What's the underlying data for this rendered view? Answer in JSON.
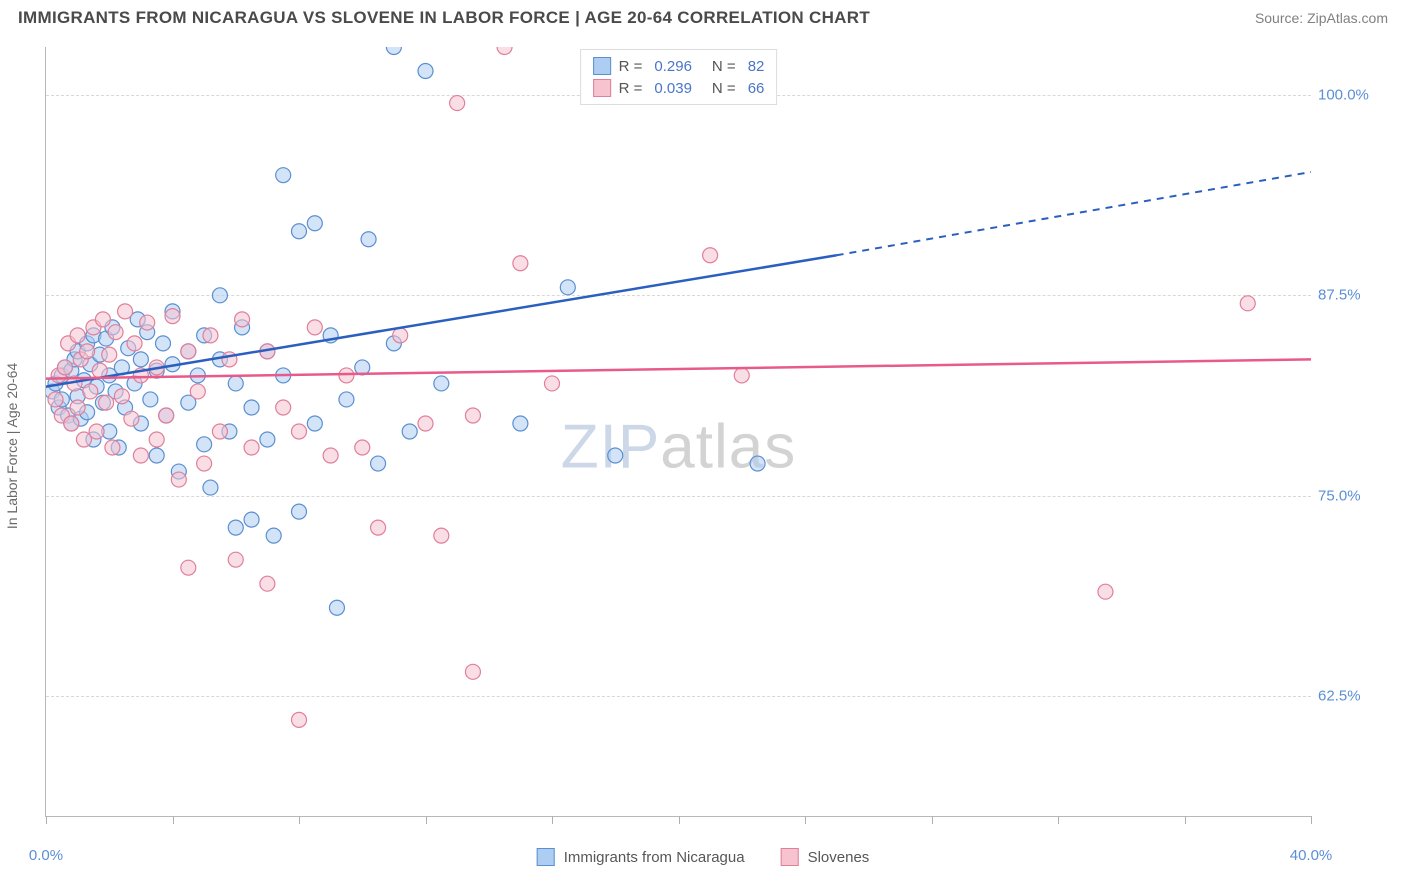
{
  "header": {
    "title": "IMMIGRANTS FROM NICARAGUA VS SLOVENE IN LABOR FORCE | AGE 20-64 CORRELATION CHART",
    "source": "Source: ZipAtlas.com"
  },
  "chart": {
    "type": "scatter",
    "ylabel": "In Labor Force | Age 20-64",
    "xlim": [
      0,
      40
    ],
    "ylim": [
      55,
      103
    ],
    "x_ticks": [
      0,
      4,
      8,
      12,
      16,
      20,
      24,
      28,
      32,
      36,
      40
    ],
    "x_tick_labels": {
      "0": "0.0%",
      "40": "40.0%"
    },
    "y_gridlines": [
      62.5,
      75.0,
      87.5,
      100.0
    ],
    "y_tick_labels": [
      "62.5%",
      "75.0%",
      "87.5%",
      "100.0%"
    ],
    "background_color": "#ffffff",
    "grid_color": "#d8d8d8",
    "axis_color": "#b8b8b8",
    "label_color": "#5b8fd6",
    "marker_radius": 7.5,
    "marker_opacity": 0.55,
    "watermark": {
      "part1": "ZIP",
      "part2": "atlas"
    },
    "series": [
      {
        "name": "Immigrants from Nicaragua",
        "fill": "#aecdf2",
        "stroke": "#5a8fd0",
        "line_color": "#2a5fc0",
        "r_value": "0.296",
        "n_value": "82",
        "trend": {
          "x1": 0,
          "y1": 81.8,
          "x2": 25,
          "y2": 90.0,
          "x_dash_to": 40,
          "y_dash_to": 95.2
        },
        "points": [
          [
            0.2,
            81.5
          ],
          [
            0.3,
            82.0
          ],
          [
            0.4,
            80.5
          ],
          [
            0.5,
            82.5
          ],
          [
            0.5,
            81.0
          ],
          [
            0.6,
            83.0
          ],
          [
            0.7,
            80.0
          ],
          [
            0.8,
            82.8
          ],
          [
            0.8,
            79.5
          ],
          [
            0.9,
            83.5
          ],
          [
            1.0,
            81.2
          ],
          [
            1.0,
            84.0
          ],
          [
            1.1,
            79.8
          ],
          [
            1.2,
            82.2
          ],
          [
            1.3,
            84.5
          ],
          [
            1.3,
            80.2
          ],
          [
            1.4,
            83.2
          ],
          [
            1.5,
            78.5
          ],
          [
            1.5,
            85.0
          ],
          [
            1.6,
            81.8
          ],
          [
            1.7,
            83.8
          ],
          [
            1.8,
            80.8
          ],
          [
            1.9,
            84.8
          ],
          [
            2.0,
            79.0
          ],
          [
            2.0,
            82.5
          ],
          [
            2.1,
            85.5
          ],
          [
            2.2,
            81.5
          ],
          [
            2.3,
            78.0
          ],
          [
            2.4,
            83.0
          ],
          [
            2.5,
            80.5
          ],
          [
            2.6,
            84.2
          ],
          [
            2.8,
            82.0
          ],
          [
            2.9,
            86.0
          ],
          [
            3.0,
            79.5
          ],
          [
            3.0,
            83.5
          ],
          [
            3.2,
            85.2
          ],
          [
            3.3,
            81.0
          ],
          [
            3.5,
            77.5
          ],
          [
            3.5,
            82.8
          ],
          [
            3.7,
            84.5
          ],
          [
            3.8,
            80.0
          ],
          [
            4.0,
            83.2
          ],
          [
            4.0,
            86.5
          ],
          [
            4.2,
            76.5
          ],
          [
            4.5,
            84.0
          ],
          [
            4.5,
            80.8
          ],
          [
            4.8,
            82.5
          ],
          [
            5.0,
            78.2
          ],
          [
            5.0,
            85.0
          ],
          [
            5.2,
            75.5
          ],
          [
            5.5,
            83.5
          ],
          [
            5.5,
            87.5
          ],
          [
            5.8,
            79.0
          ],
          [
            6.0,
            73.0
          ],
          [
            6.0,
            82.0
          ],
          [
            6.2,
            85.5
          ],
          [
            6.5,
            73.5
          ],
          [
            6.5,
            80.5
          ],
          [
            7.0,
            78.5
          ],
          [
            7.0,
            84.0
          ],
          [
            7.2,
            72.5
          ],
          [
            7.5,
            95.0
          ],
          [
            7.5,
            82.5
          ],
          [
            8.0,
            91.5
          ],
          [
            8.0,
            74.0
          ],
          [
            8.5,
            92.0
          ],
          [
            8.5,
            79.5
          ],
          [
            9.0,
            85.0
          ],
          [
            9.2,
            68.0
          ],
          [
            9.5,
            81.0
          ],
          [
            10.0,
            83.0
          ],
          [
            10.2,
            91.0
          ],
          [
            10.5,
            77.0
          ],
          [
            11.0,
            103.0
          ],
          [
            11.0,
            84.5
          ],
          [
            11.5,
            79.0
          ],
          [
            12.0,
            101.5
          ],
          [
            12.5,
            82.0
          ],
          [
            15.0,
            79.5
          ],
          [
            16.5,
            88.0
          ],
          [
            18.0,
            77.5
          ],
          [
            22.5,
            77.0
          ]
        ]
      },
      {
        "name": "Slovenes",
        "fill": "#f6c3cf",
        "stroke": "#e07f9a",
        "line_color": "#e75a8a",
        "r_value": "0.039",
        "n_value": "66",
        "trend": {
          "x1": 0,
          "y1": 82.3,
          "x2": 40,
          "y2": 83.5,
          "x_dash_to": 40,
          "y_dash_to": 83.5
        },
        "points": [
          [
            0.3,
            81.0
          ],
          [
            0.4,
            82.5
          ],
          [
            0.5,
            80.0
          ],
          [
            0.6,
            83.0
          ],
          [
            0.7,
            84.5
          ],
          [
            0.8,
            79.5
          ],
          [
            0.9,
            82.0
          ],
          [
            1.0,
            85.0
          ],
          [
            1.0,
            80.5
          ],
          [
            1.1,
            83.5
          ],
          [
            1.2,
            78.5
          ],
          [
            1.3,
            84.0
          ],
          [
            1.4,
            81.5
          ],
          [
            1.5,
            85.5
          ],
          [
            1.6,
            79.0
          ],
          [
            1.7,
            82.8
          ],
          [
            1.8,
            86.0
          ],
          [
            1.9,
            80.8
          ],
          [
            2.0,
            83.8
          ],
          [
            2.1,
            78.0
          ],
          [
            2.2,
            85.2
          ],
          [
            2.4,
            81.2
          ],
          [
            2.5,
            86.5
          ],
          [
            2.7,
            79.8
          ],
          [
            2.8,
            84.5
          ],
          [
            3.0,
            77.5
          ],
          [
            3.0,
            82.5
          ],
          [
            3.2,
            85.8
          ],
          [
            3.5,
            78.5
          ],
          [
            3.5,
            83.0
          ],
          [
            3.8,
            80.0
          ],
          [
            4.0,
            86.2
          ],
          [
            4.2,
            76.0
          ],
          [
            4.5,
            84.0
          ],
          [
            4.5,
            70.5
          ],
          [
            4.8,
            81.5
          ],
          [
            5.0,
            77.0
          ],
          [
            5.2,
            85.0
          ],
          [
            5.5,
            79.0
          ],
          [
            5.8,
            83.5
          ],
          [
            6.0,
            71.0
          ],
          [
            6.2,
            86.0
          ],
          [
            6.5,
            78.0
          ],
          [
            7.0,
            69.5
          ],
          [
            7.0,
            84.0
          ],
          [
            7.5,
            80.5
          ],
          [
            8.0,
            61.0
          ],
          [
            8.0,
            79.0
          ],
          [
            8.5,
            85.5
          ],
          [
            9.0,
            77.5
          ],
          [
            9.5,
            82.5
          ],
          [
            10.0,
            78.0
          ],
          [
            10.5,
            73.0
          ],
          [
            11.2,
            85.0
          ],
          [
            12.0,
            79.5
          ],
          [
            12.5,
            72.5
          ],
          [
            13.0,
            99.5
          ],
          [
            13.5,
            64.0
          ],
          [
            13.5,
            80.0
          ],
          [
            14.5,
            103.0
          ],
          [
            15.0,
            89.5
          ],
          [
            16.0,
            82.0
          ],
          [
            21.0,
            90.0
          ],
          [
            22.0,
            82.5
          ],
          [
            33.5,
            69.0
          ],
          [
            38.0,
            87.0
          ]
        ]
      }
    ],
    "legend_top": {
      "r_label": "R =",
      "n_label": "N ="
    },
    "legend_bottom": {}
  }
}
